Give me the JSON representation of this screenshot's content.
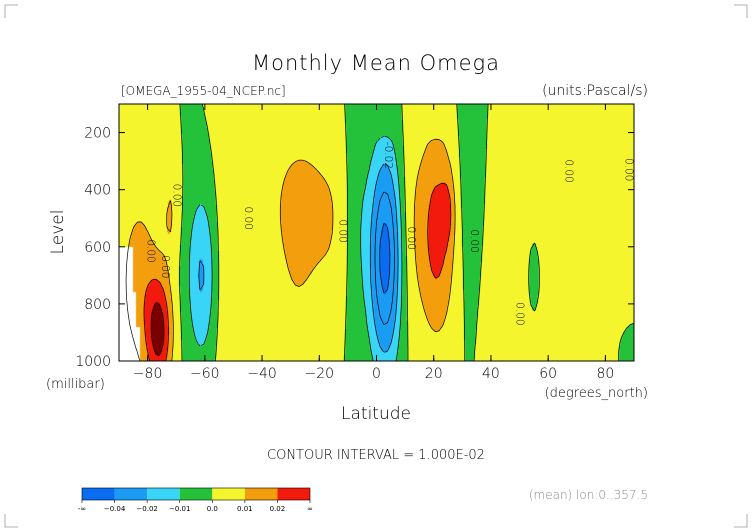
{
  "chart_data": {
    "type": "heatmap",
    "title": "Monthly Mean Omega",
    "file_label": "[OMEGA_1955-04_NCEP.nc]",
    "units_label": "(units:Pascal/s)",
    "xlabel": "Latitude",
    "x_unit": "(degrees_north)",
    "ylabel": "Level",
    "y_unit": "(millibar)",
    "xlim": [
      -90,
      90
    ],
    "ylim": [
      1000,
      100
    ],
    "x_ticks": [
      -80,
      -60,
      -40,
      -20,
      0,
      20,
      40,
      60,
      80
    ],
    "y_ticks": [
      200,
      400,
      600,
      800,
      1000
    ],
    "contour_interval_text": "CONTOUR INTERVAL = 1.000E-02",
    "contour_labels": [
      {
        "text": "0.00",
        "lat": -71,
        "lev": 420
      },
      {
        "text": "0.00",
        "lat": -80,
        "lev": 615
      },
      {
        "text": "0.00",
        "lat": -75,
        "lev": 670
      },
      {
        "text": "0.00",
        "lat": -46,
        "lev": 500
      },
      {
        "text": "0.00",
        "lat": -13,
        "lev": 545
      },
      {
        "text": "-0.02",
        "lat": 3,
        "lev": 280
      },
      {
        "text": "0.00",
        "lat": 11,
        "lev": 570
      },
      {
        "text": "0.00",
        "lat": 33,
        "lev": 580
      },
      {
        "text": "0.00",
        "lat": 49,
        "lev": 835
      },
      {
        "text": "0.00",
        "lat": 66,
        "lev": 335
      },
      {
        "text": "0.00",
        "lat": 87,
        "lev": 330
      }
    ],
    "field_features": [
      {
        "lat": -83,
        "lev": 650,
        "value": 0.035
      },
      {
        "lat": -75,
        "lev": 850,
        "value": 0.035
      },
      {
        "lat": -73,
        "lev": 830,
        "value": 0.03
      },
      {
        "lat": -61,
        "lev": 620,
        "value": -0.015
      },
      {
        "lat": -58,
        "lev": 780,
        "value": -0.025
      },
      {
        "lat": -27,
        "lev": 440,
        "value": 0.012
      },
      {
        "lat": -16,
        "lev": 550,
        "value": 0.007
      },
      {
        "lat": 2,
        "lev": 600,
        "value": -0.035
      },
      {
        "lat": 3,
        "lev": 850,
        "value": -0.025
      },
      {
        "lat": 20,
        "lev": 560,
        "value": 0.015
      },
      {
        "lat": 24,
        "lev": 470,
        "value": 0.025
      },
      {
        "lat": 37,
        "lev": 300,
        "value": -0.004
      },
      {
        "lat": 55,
        "lev": 700,
        "value": -0.01
      },
      {
        "lat": 72,
        "lev": 560,
        "value": 0.006
      }
    ],
    "legend": {
      "levels": [
        "-∞",
        "−0.04",
        "−0.02",
        "−0.01",
        "0.0",
        "0.01",
        "0.02",
        "∞"
      ],
      "colors": [
        "#0a6cf0",
        "#1a9cf5",
        "#39d5f7",
        "#24c23a",
        "#f5f52e",
        "#f29e0d",
        "#f21a0d"
      ]
    },
    "footer_text": "(mean) lon:0..357.5",
    "colors": {
      "dark_red": "#7a0000",
      "mask": "#ffffff"
    }
  }
}
